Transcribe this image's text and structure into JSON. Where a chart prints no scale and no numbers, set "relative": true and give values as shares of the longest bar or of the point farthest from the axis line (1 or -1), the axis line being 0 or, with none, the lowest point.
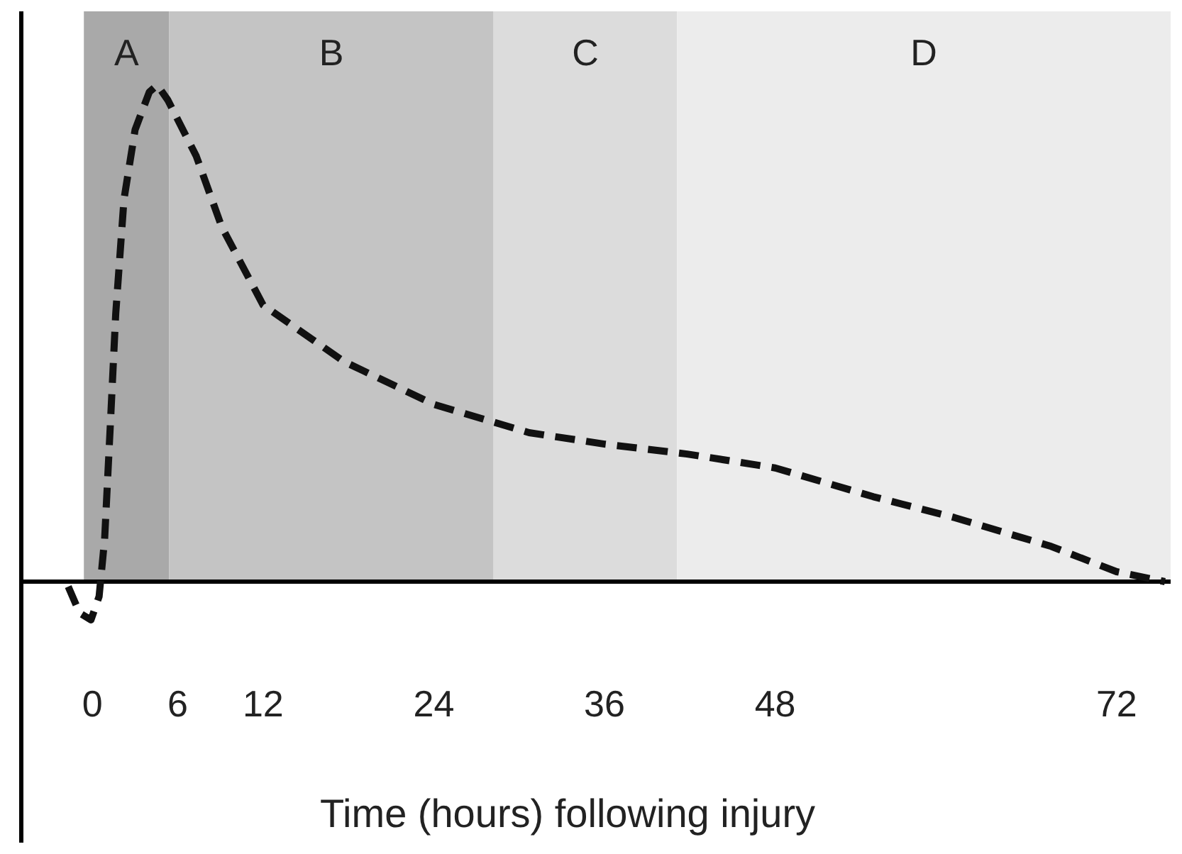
{
  "chart_data": {
    "type": "line",
    "relative": true,
    "xlabel": "Time (hours) following injury",
    "xlim": [
      -5,
      75.8
    ],
    "xticks": [
      0,
      6,
      12,
      24,
      36,
      48,
      72
    ],
    "series": [
      {
        "color": "#111111",
        "line_style": "dashed",
        "x": [
          -1.7,
          -0.9,
          -0.1,
          0.47,
          0.86,
          1.25,
          1.64,
          2.22,
          3.0,
          4.0,
          4.56,
          5.3,
          7.3,
          9.1,
          12,
          17.7,
          24,
          30.7,
          36,
          41.8,
          48,
          54.9,
          60.6,
          67.4,
          72,
          75.4
        ],
        "values": [
          -0.01,
          -0.063,
          -0.077,
          -0.03,
          0.086,
          0.31,
          0.54,
          0.77,
          0.91,
          0.986,
          1.0,
          0.97,
          0.857,
          0.714,
          0.557,
          0.443,
          0.357,
          0.3,
          0.277,
          0.257,
          0.229,
          0.171,
          0.129,
          0.071,
          0.02,
          0
        ]
      }
    ],
    "bands": [
      {
        "axis": "x",
        "from": -0.6,
        "to": 5.4,
        "label": "A",
        "color": "#a9a9a9"
      },
      {
        "axis": "x",
        "from": 5.4,
        "to": 28.2,
        "label": "B",
        "color": "#c4c4c4"
      },
      {
        "axis": "x",
        "from": 28.2,
        "to": 41.1,
        "label": "C",
        "color": "#dcdcdc"
      },
      {
        "axis": "x",
        "from": 41.1,
        "to": 75.8,
        "label": "D",
        "color": "#ececec"
      }
    ],
    "grid": false,
    "marker": "none"
  }
}
